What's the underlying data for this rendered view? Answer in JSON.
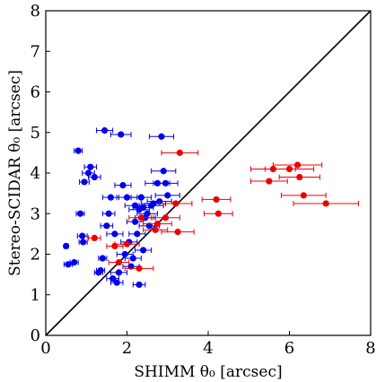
{
  "chart_data": {
    "type": "scatter",
    "xlabel": "SHIMM θ₀ [arcsec]",
    "ylabel": "Stereo-SCIDAR θ₀ [arcsec]",
    "xlim": [
      0,
      8
    ],
    "ylim": [
      0,
      8
    ],
    "xticks": [
      0,
      2,
      4,
      6,
      8
    ],
    "yticks": [
      0,
      1,
      2,
      3,
      4,
      5,
      6,
      7,
      8
    ],
    "grid": false,
    "colors": {
      "blue": "#0000ee",
      "red": "#ee0000",
      "line": "#000000"
    },
    "reference_line": {
      "from": [
        0,
        0
      ],
      "to": [
        8,
        8
      ]
    },
    "series": [
      {
        "color": "blue",
        "points": [
          [
            0.5,
            2.2,
            0.05
          ],
          [
            0.55,
            1.75,
            0.1
          ],
          [
            0.7,
            1.8,
            0.1
          ],
          [
            0.8,
            4.55,
            0.1
          ],
          [
            0.85,
            3.0,
            0.1
          ],
          [
            0.9,
            2.45,
            0.12
          ],
          [
            0.92,
            2.3,
            0.1
          ],
          [
            0.95,
            3.78,
            0.12
          ],
          [
            1.05,
            4.0,
            0.15
          ],
          [
            1.1,
            4.15,
            0.15
          ],
          [
            1.2,
            3.9,
            0.15
          ],
          [
            1.3,
            1.55,
            0.1
          ],
          [
            1.35,
            1.6,
            0.1
          ],
          [
            1.4,
            1.9,
            0.1
          ],
          [
            1.45,
            5.05,
            0.2
          ],
          [
            1.5,
            2.7,
            0.15
          ],
          [
            1.55,
            3.0,
            0.15
          ],
          [
            1.6,
            3.4,
            0.2
          ],
          [
            1.65,
            1.4,
            0.15
          ],
          [
            1.7,
            2.5,
            0.2
          ],
          [
            1.75,
            1.3,
            0.15
          ],
          [
            1.8,
            1.55,
            0.2
          ],
          [
            1.85,
            4.95,
            0.25
          ],
          [
            1.9,
            3.7,
            0.2
          ],
          [
            1.95,
            2.0,
            0.2
          ],
          [
            2.0,
            3.4,
            0.25
          ],
          [
            2.05,
            2.3,
            0.2
          ],
          [
            2.1,
            1.7,
            0.2
          ],
          [
            2.15,
            1.9,
            0.2
          ],
          [
            2.2,
            3.2,
            0.25
          ],
          [
            2.2,
            2.8,
            0.2
          ],
          [
            2.25,
            2.5,
            0.2
          ],
          [
            2.3,
            3.1,
            0.25
          ],
          [
            2.3,
            1.25,
            0.15
          ],
          [
            2.35,
            3.4,
            0.25
          ],
          [
            2.4,
            3.15,
            0.25
          ],
          [
            2.4,
            2.1,
            0.2
          ],
          [
            2.45,
            2.9,
            0.25
          ],
          [
            2.5,
            3.0,
            0.25
          ],
          [
            2.55,
            2.7,
            0.25
          ],
          [
            2.6,
            3.2,
            0.3
          ],
          [
            2.65,
            3.25,
            0.3
          ],
          [
            2.75,
            3.75,
            0.3
          ],
          [
            2.8,
            3.3,
            0.3
          ],
          [
            2.85,
            4.9,
            0.3
          ],
          [
            2.9,
            4.05,
            0.3
          ],
          [
            2.95,
            3.75,
            0.3
          ],
          [
            3.0,
            3.45,
            0.3
          ]
        ]
      },
      {
        "color": "red",
        "points": [
          [
            1.2,
            2.4,
            0.15
          ],
          [
            1.7,
            2.2,
            0.2
          ],
          [
            1.8,
            1.8,
            0.25
          ],
          [
            2.0,
            2.25,
            0.3
          ],
          [
            2.3,
            1.65,
            0.35
          ],
          [
            2.35,
            2.9,
            0.3
          ],
          [
            2.7,
            2.6,
            0.3
          ],
          [
            2.75,
            2.75,
            0.35
          ],
          [
            2.95,
            2.9,
            0.35
          ],
          [
            3.2,
            3.25,
            0.4
          ],
          [
            3.25,
            2.55,
            0.4
          ],
          [
            3.3,
            4.5,
            0.45
          ],
          [
            4.2,
            3.35,
            0.35
          ],
          [
            4.25,
            3.0,
            0.35
          ],
          [
            5.5,
            3.8,
            0.45
          ],
          [
            5.6,
            4.1,
            0.55
          ],
          [
            6.0,
            4.1,
            0.6
          ],
          [
            6.2,
            4.2,
            0.6
          ],
          [
            6.25,
            3.9,
            0.5
          ],
          [
            6.35,
            3.45,
            0.55
          ],
          [
            6.9,
            3.25,
            0.8
          ]
        ]
      }
    ]
  }
}
